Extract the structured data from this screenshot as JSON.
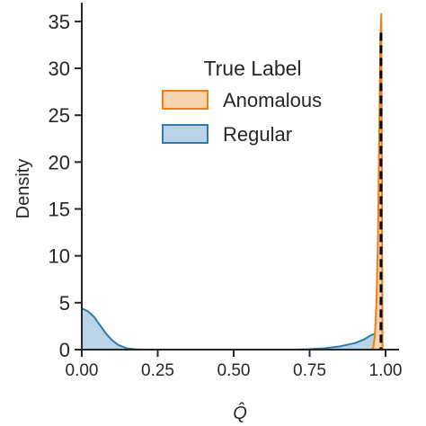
{
  "chart_data": {
    "type": "area",
    "title": "",
    "xlabel": "Q̂",
    "ylabel": "Density",
    "xlim": [
      0.0,
      1.0
    ],
    "ylim": [
      0,
      37
    ],
    "x_ticks": [
      "0.00",
      "0.25",
      "0.50",
      "0.75",
      "1.00"
    ],
    "y_ticks": [
      "0",
      "5",
      "10",
      "15",
      "20",
      "25",
      "30",
      "35"
    ],
    "grid": false,
    "legend": {
      "title": "True Label",
      "placement": "upper-center",
      "entries": [
        "Anomalous",
        "Regular"
      ]
    },
    "series": [
      {
        "name": "Anomalous",
        "color": "#ee7d1c",
        "fill": "#f9d2b0",
        "x": [
          0.955,
          0.96,
          0.965,
          0.97,
          0.975,
          0.98,
          0.983,
          0.986,
          0.99
        ],
        "y": [
          0,
          0.3,
          1.5,
          5,
          12,
          25,
          33,
          35.8,
          0
        ]
      },
      {
        "name": "Regular",
        "color": "#2f7bb0",
        "fill": "#bad3e7",
        "x": [
          0.0,
          0.02,
          0.04,
          0.06,
          0.08,
          0.1,
          0.12,
          0.15,
          0.18,
          0.2,
          0.3,
          0.5,
          0.7,
          0.75,
          0.8,
          0.85,
          0.9,
          0.93,
          0.95,
          0.97,
          0.98,
          0.99
        ],
        "y": [
          4.4,
          4.1,
          3.5,
          2.6,
          1.7,
          1.0,
          0.5,
          0.12,
          0.02,
          0,
          0,
          0,
          0,
          0.05,
          0.15,
          0.35,
          0.7,
          1.1,
          1.5,
          1.75,
          1.7,
          0
        ]
      }
    ],
    "annotations": [
      {
        "type": "vertical-dashed-line",
        "x": 0.985,
        "color": "#000000"
      }
    ]
  }
}
